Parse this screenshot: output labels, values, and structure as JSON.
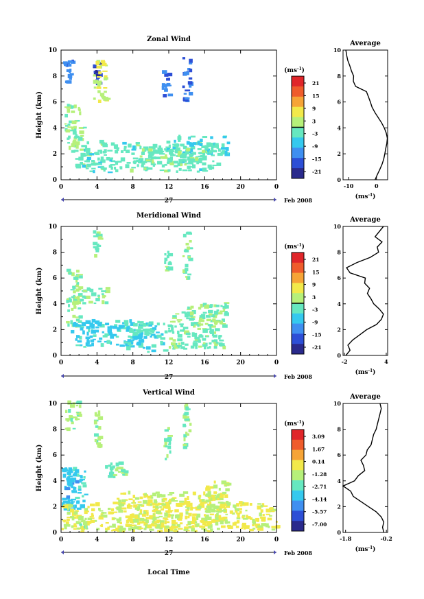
{
  "chart_data": [
    {
      "type": "heatmap",
      "title": "Zonal Wind",
      "ylabel": "Height (km)",
      "xlabel": "",
      "xlim": [
        0,
        24
      ],
      "ylim": [
        0,
        10
      ],
      "x_ticks": [
        "0",
        "4",
        "8",
        "12",
        "16",
        "20",
        "0"
      ],
      "y_ticks": [
        "0",
        "2",
        "4",
        "6",
        "8",
        "10"
      ],
      "date_axis": {
        "day": "27",
        "label": "Feb 2008"
      },
      "colorbar": {
        "unit": "(ms",
        "unit_exp": "-1",
        "unit_close": ")",
        "ticks": [
          "21",
          "15",
          "9",
          "3",
          "-3",
          "-9",
          "-15",
          "-21"
        ],
        "zero_line": true
      },
      "average_profile": {
        "title": "Average",
        "xlabel": "(ms",
        "xlabel_exp": "-1",
        "xlabel_close": ")",
        "xlim": [
          -12,
          4
        ],
        "x_ticks": [
          "-10",
          "0"
        ],
        "x_tick_values": [
          -10,
          0
        ],
        "y_ticks": [
          "0",
          "2",
          "4",
          "6",
          "8",
          "10"
        ],
        "heights": [
          0.0,
          0.4,
          0.8,
          1.2,
          1.6,
          2.0,
          2.4,
          2.8,
          3.2,
          3.6,
          4.0,
          4.4,
          4.8,
          5.2,
          5.6,
          6.0,
          6.4,
          6.8,
          7.2,
          7.6,
          8.0,
          8.4,
          8.8,
          9.2,
          9.6,
          10.0
        ],
        "values": [
          -0.5,
          0.3,
          1.2,
          2.0,
          2.6,
          3.0,
          3.3,
          3.7,
          3.9,
          3.5,
          2.8,
          1.8,
          0.6,
          -0.6,
          -1.6,
          -2.2,
          -2.9,
          -3.6,
          -7.5,
          -8.3,
          -8.2,
          -9.0,
          -9.6,
          -10.3,
          -10.7,
          -11.0
        ]
      }
    },
    {
      "type": "heatmap",
      "title": "Meridional Wind",
      "ylabel": "Height (km)",
      "xlabel": "",
      "xlim": [
        0,
        24
      ],
      "ylim": [
        0,
        10
      ],
      "x_ticks": [
        "0",
        "4",
        "8",
        "12",
        "16",
        "20",
        "0"
      ],
      "y_ticks": [
        "0",
        "2",
        "4",
        "6",
        "8",
        "10"
      ],
      "date_axis": {
        "day": "27",
        "label": "Feb 2008"
      },
      "colorbar": {
        "unit": "(ms",
        "unit_exp": "-1",
        "unit_close": ")",
        "ticks": [
          "21",
          "15",
          "9",
          "3",
          "-3",
          "-9",
          "-15",
          "-21"
        ],
        "zero_line": true
      },
      "average_profile": {
        "title": "Average",
        "xlabel": "(ms",
        "xlabel_exp": "-1",
        "xlabel_close": ")",
        "xlim": [
          -2.2,
          4.2
        ],
        "x_ticks": [
          "-2",
          "4"
        ],
        "x_tick_values": [
          -2,
          4
        ],
        "y_ticks": [
          "0",
          "2",
          "4",
          "6",
          "8",
          "10"
        ],
        "heights": [
          0.0,
          0.4,
          0.8,
          1.2,
          1.6,
          2.0,
          2.4,
          2.8,
          3.2,
          3.6,
          4.0,
          4.4,
          4.8,
          5.2,
          5.6,
          6.0,
          6.4,
          6.8,
          7.2,
          7.6,
          8.0,
          8.4,
          8.8,
          9.2,
          9.6,
          10.0
        ],
        "values": [
          -1.8,
          -1.2,
          -1.5,
          -0.8,
          0.2,
          1.2,
          2.6,
          3.3,
          3.6,
          3.0,
          2.2,
          1.8,
          1.3,
          1.6,
          0.9,
          1.0,
          -1.2,
          -1.7,
          -0.2,
          1.7,
          2.9,
          2.7,
          3.4,
          2.4,
          3.0,
          3.6
        ]
      }
    },
    {
      "type": "heatmap",
      "title": "Vertical Wind",
      "ylabel": "Height (km)",
      "xlabel": "Local Time",
      "xlim": [
        0,
        24
      ],
      "ylim": [
        0,
        10
      ],
      "x_ticks": [
        "0",
        "4",
        "8",
        "12",
        "16",
        "20",
        "0"
      ],
      "y_ticks": [
        "0",
        "2",
        "4",
        "6",
        "8",
        "10"
      ],
      "date_axis": {
        "day": "27",
        "label": "Feb 2008"
      },
      "colorbar": {
        "unit": "(ms",
        "unit_exp": "-1",
        "unit_close": ")",
        "ticks": [
          "3.09",
          "1.67",
          "0.14",
          "-1.28",
          "-2.71",
          "-4.14",
          "-5.57",
          "-7.00"
        ],
        "zero_line": false
      },
      "average_profile": {
        "title": "Average",
        "xlabel": "(ms",
        "xlabel_exp": "-1",
        "xlabel_close": ")",
        "xlim": [
          -1.9,
          -0.15
        ],
        "x_ticks": [
          "-1.8",
          "-0.2"
        ],
        "x_tick_values": [
          -1.8,
          -0.2
        ],
        "heights": [
          0.0,
          0.4,
          0.8,
          1.2,
          1.6,
          2.0,
          2.4,
          2.8,
          3.2,
          3.6,
          4.0,
          4.4,
          4.8,
          5.2,
          5.6,
          6.0,
          6.4,
          6.8,
          7.2,
          7.6,
          8.0,
          8.4,
          8.8,
          9.2,
          9.6,
          10.0
        ],
        "values": [
          -0.3,
          -0.35,
          -0.3,
          -0.4,
          -0.6,
          -0.9,
          -1.2,
          -1.5,
          -1.6,
          -1.9,
          -1.45,
          -1.3,
          -1.05,
          -1.1,
          -1.2,
          -1.0,
          -0.95,
          -0.8,
          -0.75,
          -0.7,
          -0.6,
          -0.55,
          -0.5,
          -0.45,
          -0.4,
          -0.45
        ],
        "y_ticks": [
          "0",
          "2",
          "4",
          "6",
          "8",
          "10"
        ]
      }
    }
  ]
}
